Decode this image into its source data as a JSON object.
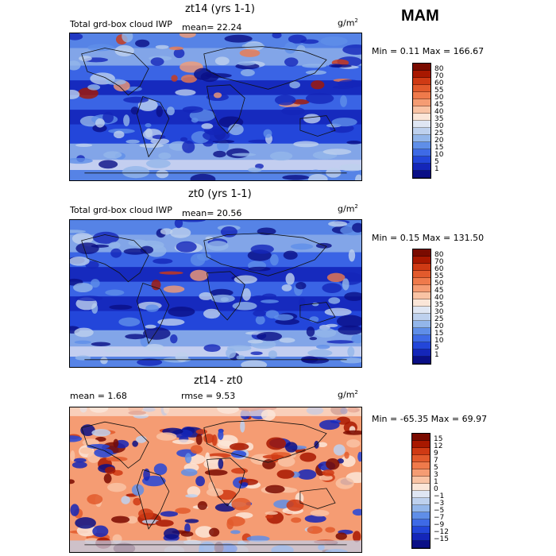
{
  "season": "MAM",
  "units": "g/m",
  "units_sup": "2",
  "panels": [
    {
      "title": "zt14 (yrs 1-1)",
      "field": "Total grd-box cloud IWP",
      "stat1": "mean=  22.24",
      "minmax": "Min =    0.11  Max = 166.67",
      "levels": [
        "80",
        "70",
        "60",
        "55",
        "50",
        "45",
        "40",
        "35",
        "30",
        "25",
        "20",
        "15",
        "10",
        "5",
        "1"
      ],
      "colors": [
        "#7a0b00",
        "#a81800",
        "#cf3a14",
        "#e25a2c",
        "#ef7a4b",
        "#f59c73",
        "#f9c3a4",
        "#fbe6d8",
        "#dfe6f3",
        "#bed1ee",
        "#93b6ea",
        "#5f8ee8",
        "#3e6ae6",
        "#2346d9",
        "#1426b9",
        "#0a0f86"
      ]
    },
    {
      "title": "zt0 (yrs 1-1)",
      "field": "Total grd-box cloud IWP",
      "stat1": "mean=  20.56",
      "minmax": "Min =    0.15  Max = 131.50",
      "levels": [
        "80",
        "70",
        "60",
        "55",
        "50",
        "45",
        "40",
        "35",
        "30",
        "25",
        "20",
        "15",
        "10",
        "5",
        "1"
      ],
      "colors": [
        "#7a0b00",
        "#a81800",
        "#cf3a14",
        "#e25a2c",
        "#ef7a4b",
        "#f59c73",
        "#f9c3a4",
        "#fbe6d8",
        "#dfe6f3",
        "#bed1ee",
        "#93b6ea",
        "#5f8ee8",
        "#3e6ae6",
        "#2346d9",
        "#1426b9",
        "#0a0f86"
      ]
    },
    {
      "title": "zt14 - zt0",
      "stat1": "mean =    1.68",
      "stat2": "rmse =    9.53",
      "minmax": "Min = -65.35  Max =  69.97",
      "levels": [
        "15",
        "12",
        "9",
        "7",
        "5",
        "3",
        "1",
        "0",
        "−1",
        "−3",
        "−5",
        "−7",
        "−9",
        "−12",
        "−15"
      ],
      "colors": [
        "#7a0b00",
        "#a81800",
        "#cf3a14",
        "#e25a2c",
        "#ef7a4b",
        "#f59c73",
        "#f9c3a4",
        "#fbe6d8",
        "#dfe6f3",
        "#bed1ee",
        "#93b6ea",
        "#5f8ee8",
        "#3e6ae6",
        "#2346d9",
        "#1426b9",
        "#0a0f86"
      ]
    }
  ]
}
